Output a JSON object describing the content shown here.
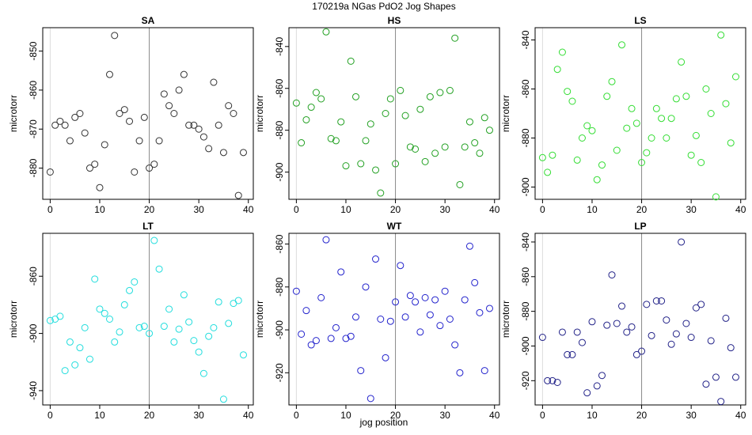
{
  "suptitle": "170219a   NGas PdO2 Jog Shapes",
  "xlabel": "jog position",
  "chart_data": [
    {
      "type": "scatter",
      "title": "SA",
      "xlabel": "",
      "ylabel": "microtorr",
      "xlim": [
        -1.5,
        41
      ],
      "ylim": [
        -888,
        -844
      ],
      "xticks": [
        0,
        10,
        20,
        30,
        40
      ],
      "yticks": [
        -880,
        -870,
        -860,
        -850
      ],
      "vline": 20,
      "marker_color": "#333333",
      "x": [
        0,
        1,
        2,
        3,
        4,
        5,
        6,
        7,
        8,
        9,
        10,
        11,
        12,
        13,
        14,
        15,
        16,
        17,
        18,
        19,
        20,
        21,
        22,
        23,
        24,
        25,
        26,
        27,
        28,
        29,
        30,
        31,
        32,
        33,
        34,
        35,
        36,
        37,
        38,
        39
      ],
      "y": [
        -881,
        -869,
        -868,
        -869,
        -873,
        -867,
        -866,
        -871,
        -880,
        -879,
        -885,
        -874,
        -856,
        -846,
        -866,
        -865,
        -868,
        -881,
        -873,
        -867,
        -880,
        -879,
        -873,
        -861,
        -864,
        -866,
        -860,
        -856,
        -869,
        -869,
        -870,
        -872,
        -875,
        -858,
        -869,
        -876,
        -864,
        -866,
        -887,
        -876
      ]
    },
    {
      "type": "scatter",
      "title": "HS",
      "xlabel": "",
      "ylabel": "microtorr",
      "xlim": [
        -1.5,
        41
      ],
      "ylim": [
        -913,
        -831
      ],
      "xticks": [
        0,
        10,
        20,
        30,
        40
      ],
      "yticks": [
        -900,
        -880,
        -860,
        -840
      ],
      "vline": 20,
      "marker_color": "#22a022",
      "x": [
        0,
        1,
        2,
        3,
        4,
        5,
        6,
        7,
        8,
        9,
        10,
        11,
        12,
        13,
        14,
        15,
        16,
        17,
        18,
        19,
        20,
        21,
        22,
        23,
        24,
        25,
        26,
        27,
        28,
        29,
        30,
        31,
        32,
        33,
        34,
        35,
        36,
        37,
        38,
        39
      ],
      "y": [
        -867,
        -886,
        -875,
        -869,
        -862,
        -865,
        -833,
        -884,
        -885,
        -876,
        -897,
        -847,
        -864,
        -896,
        -885,
        -877,
        -899,
        -910,
        -872,
        -865,
        -896,
        -861,
        -873,
        -888,
        -889,
        -870,
        -895,
        -864,
        -891,
        -862,
        -888,
        -861,
        -836,
        -906,
        -888,
        -876,
        -886,
        -891,
        -874,
        -880
      ]
    },
    {
      "type": "scatter",
      "title": "LS",
      "xlabel": "",
      "ylabel": "microtorr",
      "xlim": [
        -1.5,
        41
      ],
      "ylim": [
        -905,
        -835
      ],
      "xticks": [
        0,
        10,
        20,
        30,
        40
      ],
      "yticks": [
        -900,
        -880,
        -860,
        -840
      ],
      "vline": 20,
      "marker_color": "#33dd33",
      "x": [
        0,
        1,
        2,
        3,
        4,
        5,
        6,
        7,
        8,
        9,
        10,
        11,
        12,
        13,
        14,
        15,
        16,
        17,
        18,
        19,
        20,
        21,
        22,
        23,
        24,
        25,
        26,
        27,
        28,
        29,
        30,
        31,
        32,
        33,
        34,
        35,
        36,
        37,
        38,
        39
      ],
      "y": [
        -888,
        -894,
        -887,
        -852,
        -845,
        -861,
        -865,
        -889,
        -880,
        -875,
        -877,
        -897,
        -891,
        -863,
        -857,
        -885,
        -842,
        -876,
        -868,
        -874,
        -890,
        -886,
        -880,
        -868,
        -872,
        -880,
        -872,
        -864,
        -849,
        -863,
        -887,
        -879,
        -890,
        -860,
        -870,
        -904,
        -838,
        -866,
        -882,
        -855
      ]
    },
    {
      "type": "scatter",
      "title": "LT",
      "xlabel": "",
      "ylabel": "microtorr",
      "xlim": [
        -1.5,
        41
      ],
      "ylim": [
        -950,
        -830
      ],
      "xticks": [
        0,
        10,
        20,
        30,
        40
      ],
      "yticks": [
        -940,
        -900,
        -860
      ],
      "vline": 20,
      "marker_color": "#22dddd",
      "x": [
        0,
        1,
        2,
        3,
        4,
        5,
        6,
        7,
        8,
        9,
        10,
        11,
        12,
        13,
        14,
        15,
        16,
        17,
        18,
        19,
        20,
        21,
        22,
        23,
        24,
        25,
        26,
        27,
        28,
        29,
        30,
        31,
        32,
        33,
        34,
        35,
        36,
        37,
        38,
        39
      ],
      "y": [
        -891,
        -890,
        -888,
        -926,
        -906,
        -922,
        -910,
        -896,
        -918,
        -862,
        -883,
        -886,
        -890,
        -906,
        -899,
        -880,
        -870,
        -864,
        -896,
        -895,
        -900,
        -835,
        -855,
        -895,
        -883,
        -906,
        -897,
        -873,
        -892,
        -905,
        -913,
        -928,
        -902,
        -896,
        -878,
        -946,
        -893,
        -879,
        -877,
        -915
      ]
    },
    {
      "type": "scatter",
      "title": "WT",
      "xlabel": "",
      "ylabel": "microtorr",
      "xlim": [
        -1.5,
        41
      ],
      "ylim": [
        -935,
        -855
      ],
      "xticks": [
        0,
        10,
        20,
        30,
        40
      ],
      "yticks": [
        -920,
        -900,
        -880,
        -860
      ],
      "vline": 20,
      "marker_color": "#2222cc",
      "x": [
        0,
        1,
        2,
        3,
        4,
        5,
        6,
        7,
        8,
        9,
        10,
        11,
        12,
        13,
        14,
        15,
        16,
        17,
        18,
        19,
        20,
        21,
        22,
        23,
        24,
        25,
        26,
        27,
        28,
        29,
        30,
        31,
        32,
        33,
        34,
        35,
        36,
        37,
        38,
        39
      ],
      "y": [
        -882,
        -902,
        -891,
        -907,
        -905,
        -885,
        -858,
        -904,
        -899,
        -873,
        -904,
        -903,
        -894,
        -919,
        -880,
        -932,
        -867,
        -895,
        -913,
        -896,
        -887,
        -870,
        -894,
        -884,
        -887,
        -901,
        -885,
        -893,
        -886,
        -898,
        -882,
        -895,
        -907,
        -920,
        -886,
        -861,
        -878,
        -892,
        -919,
        -890
      ]
    },
    {
      "type": "scatter",
      "title": "LP",
      "xlabel": "",
      "ylabel": "microtorr",
      "xlim": [
        -1.5,
        41
      ],
      "ylim": [
        -934,
        -835
      ],
      "xticks": [
        0,
        10,
        20,
        30,
        40
      ],
      "yticks": [
        -920,
        -900,
        -880,
        -860,
        -840
      ],
      "vline": 20,
      "marker_color": "#222288",
      "x": [
        0,
        1,
        2,
        3,
        4,
        5,
        6,
        7,
        8,
        9,
        10,
        11,
        12,
        13,
        14,
        15,
        16,
        17,
        18,
        19,
        20,
        21,
        22,
        23,
        24,
        25,
        26,
        27,
        28,
        29,
        30,
        31,
        32,
        33,
        34,
        35,
        36,
        37,
        38,
        39
      ],
      "y": [
        -895,
        -920,
        -920,
        -921,
        -892,
        -905,
        -905,
        -892,
        -898,
        -927,
        -886,
        -923,
        -917,
        -888,
        -859,
        -887,
        -877,
        -892,
        -889,
        -905,
        -903,
        -876,
        -894,
        -874,
        -874,
        -885,
        -899,
        -893,
        -840,
        -887,
        -895,
        -878,
        -876,
        -922,
        -897,
        -918,
        -932,
        -884,
        -901,
        -918
      ]
    }
  ]
}
